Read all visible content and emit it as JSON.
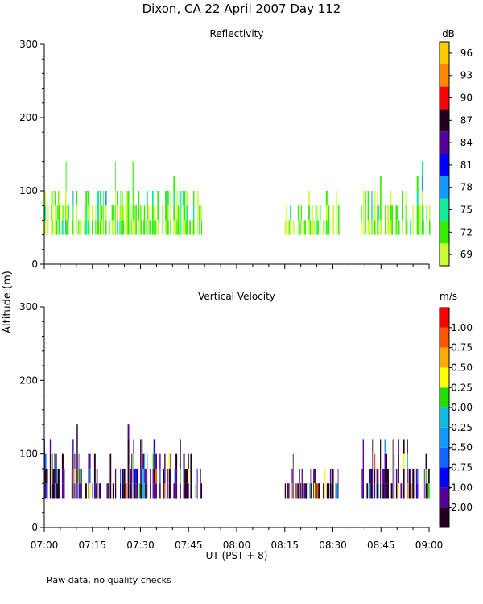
{
  "title": "Dixon, CA 22 April 2007  Day 112",
  "note": "Raw data, no quality checks",
  "ylabel": "Altitude (m)",
  "xlabel": "UT  (PST + 8)",
  "time_ticks": [
    "07:00",
    "07:15",
    "07:30",
    "07:45",
    "08:00",
    "08:15",
    "08:30",
    "08:45",
    "09:00"
  ],
  "altitude_ticks": [
    "0",
    "100",
    "200",
    "300"
  ],
  "colors": {
    "refl": [
      "#ccff33",
      "#33ee00",
      "#11ee99",
      "#1199ff",
      "#0000ff",
      "#550099",
      "#220022",
      "#ff0000",
      "#ff8800",
      "#ffcc00"
    ],
    "vel": [
      "#220022",
      "#550099",
      "#0000ff",
      "#1166ff",
      "#1199ff",
      "#11bbdd",
      "#22dd00",
      "#ffff00",
      "#ffaa00",
      "#ff5500",
      "#ff0000"
    ]
  },
  "chart_data": [
    {
      "type": "heatmap",
      "title": "Reflectivity",
      "unit": "dB",
      "xlim": [
        "07:00",
        "09:00"
      ],
      "ylim": [
        0,
        300
      ],
      "colorbar_ticks": [
        "69",
        "72",
        "75",
        "78",
        "81",
        "84",
        "87",
        "90",
        "93",
        "96"
      ],
      "echo_segments": [
        {
          "start": "07:00",
          "end": "07:49",
          "base_m": 40,
          "top_m": 120,
          "peak_top_m": 140,
          "dominant_db": "72-75"
        },
        {
          "start": "08:15",
          "end": "08:32",
          "base_m": 40,
          "top_m": 100,
          "dominant_db": "69-72"
        },
        {
          "start": "08:39",
          "end": "09:00",
          "base_m": 40,
          "top_m": 120,
          "peak_top_m": 140,
          "dominant_db": "72-75"
        }
      ]
    },
    {
      "type": "heatmap",
      "title": "Vertical Velocity",
      "unit": "m/s",
      "xlim": [
        "07:00",
        "09:00"
      ],
      "ylim": [
        0,
        300
      ],
      "colorbar_ticks": [
        "-2.00",
        "-1.00",
        "-0.75",
        "-0.50",
        "-0.25",
        "0.00",
        "0.25",
        "0.50",
        "0.75",
        "1.00"
      ],
      "echo_segments": [
        {
          "start": "07:00",
          "end": "07:49",
          "base_m": 40,
          "top_m": 120,
          "peak_top_m": 140,
          "dominant_ms": "-2.00 to -1.00"
        },
        {
          "start": "08:15",
          "end": "08:32",
          "base_m": 40,
          "top_m": 100,
          "dominant_ms": "-2.00 to -1.00"
        },
        {
          "start": "08:39",
          "end": "09:00",
          "base_m": 40,
          "top_m": 120,
          "peak_top_m": 140,
          "dominant_ms": "-2.00 to -1.00"
        }
      ]
    }
  ]
}
